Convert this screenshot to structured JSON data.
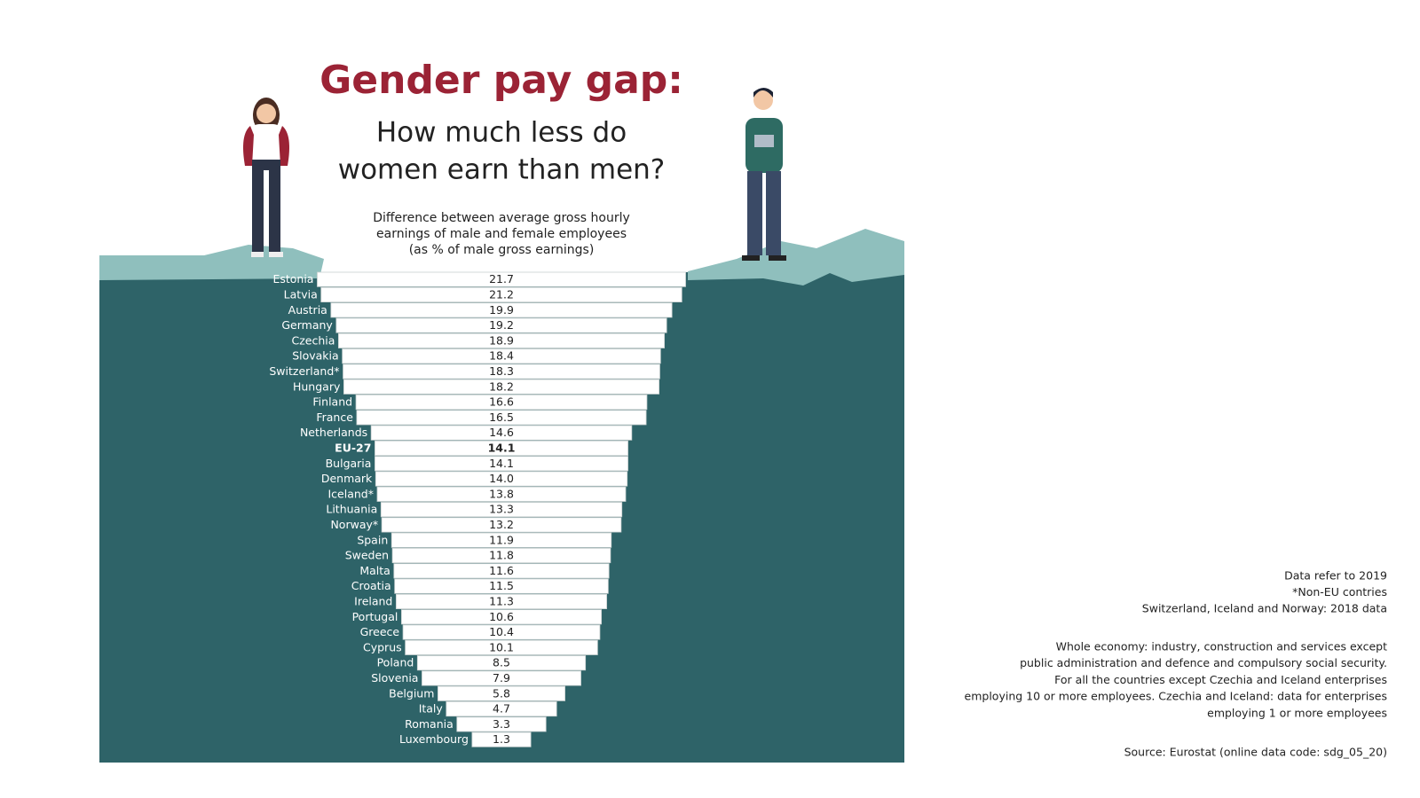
{
  "chart_data": {
    "type": "bar",
    "title": "Gender pay gap:",
    "subtitle": [
      "How much less do",
      "women earn than men?"
    ],
    "description": [
      "Difference between average gross hourly",
      "earnings of male and female employees",
      "(as % of male gross earnings)"
    ],
    "categories": [
      "Estonia",
      "Latvia",
      "Austria",
      "Germany",
      "Czechia",
      "Slovakia",
      "Switzerland*",
      "Hungary",
      "Finland",
      "France",
      "Netherlands",
      "EU-27",
      "Bulgaria",
      "Denmark",
      "Iceland*",
      "Lithuania",
      "Norway*",
      "Spain",
      "Sweden",
      "Malta",
      "Croatia",
      "Ireland",
      "Portugal",
      "Greece",
      "Cyprus",
      "Poland",
      "Slovenia",
      "Belgium",
      "Italy",
      "Romania",
      "Luxembourg"
    ],
    "values": [
      21.7,
      21.2,
      19.9,
      19.2,
      18.9,
      18.4,
      18.3,
      18.2,
      16.6,
      16.5,
      14.6,
      14.1,
      14.1,
      14.0,
      13.8,
      13.3,
      13.2,
      11.9,
      11.8,
      11.6,
      11.5,
      11.3,
      10.6,
      10.4,
      10.1,
      8.5,
      7.9,
      5.8,
      4.7,
      3.3,
      1.3
    ],
    "value_labels": [
      "21.7",
      "21.2",
      "19.9",
      "19.2",
      "18.9",
      "18.4",
      "18.3",
      "18.2",
      "16.6",
      "16.5",
      "14.6",
      "14.1",
      "14.1",
      "14.0",
      "13.8",
      "13.3",
      "13.2",
      "11.9",
      "11.8",
      "11.6",
      "11.5",
      "11.3",
      "10.6",
      "10.4",
      "10.1",
      "8.5",
      "7.9",
      "5.8",
      "4.7",
      "3.3",
      "1.3"
    ],
    "highlight": "EU-27",
    "color": "#ffffff",
    "background_color": "#2e6368",
    "title_color": "#9b2335",
    "notes": [
      "Data refer to 2019",
      "*Non-EU contries",
      "Switzerland, Iceland and Norway: 2018 data"
    ],
    "coverage": [
      "Whole economy: industry, construction and services except",
      "public administration and defence and compulsory social security.",
      "For all the countries except Czechia and Iceland enterprises",
      "employing 10 or more employees. Czechia and Iceland: data for enterprises",
      "employing 1 or more employees"
    ],
    "source": "Source: Eurostat (online data code: sdg_05_20)"
  }
}
